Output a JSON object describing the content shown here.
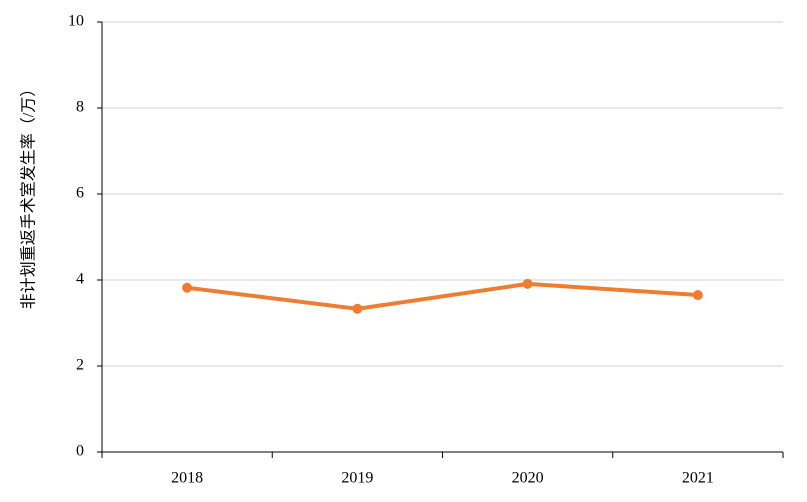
{
  "chart_data": {
    "type": "line",
    "y_label": "非计划重返手术室发生率（/万）",
    "categories": [
      "2018",
      "2019",
      "2020",
      "2021"
    ],
    "values": [
      3.82,
      3.33,
      3.91,
      3.65
    ],
    "color": "#ed7d31",
    "ylim": [
      0,
      10
    ],
    "yticks": [
      0,
      2,
      4,
      6,
      8,
      10
    ],
    "grid": true
  }
}
